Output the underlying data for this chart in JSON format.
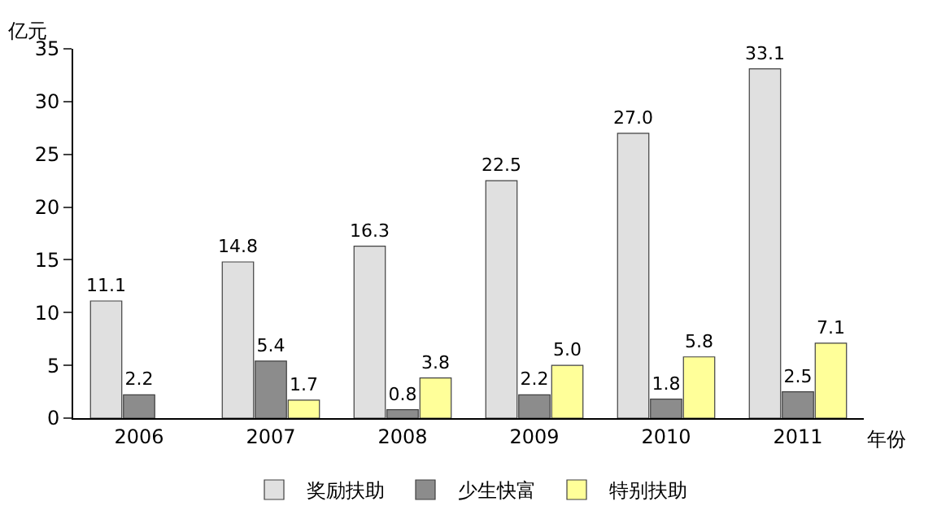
{
  "chart_data": {
    "type": "bar",
    "ylabel": "亿元",
    "xlabel": "年份",
    "categories": [
      "2006",
      "2007",
      "2008",
      "2009",
      "2010",
      "2011"
    ],
    "series": [
      {
        "name": "奖励扶助",
        "color": "#e0e0e0",
        "values": [
          11.1,
          14.8,
          16.3,
          22.5,
          27.0,
          33.1
        ],
        "value_labels": [
          "11.1",
          "14.8",
          "16.3",
          "22.5",
          "27.0",
          "33.1"
        ]
      },
      {
        "name": "少生快富",
        "color": "#8c8c8c",
        "values": [
          2.2,
          5.4,
          0.8,
          2.2,
          1.8,
          2.5
        ],
        "value_labels": [
          "2.2",
          "5.4",
          "0.8",
          "2.2",
          "1.8",
          "2.5"
        ]
      },
      {
        "name": "特别扶助",
        "color": "#ffff99",
        "values": [
          null,
          1.7,
          3.8,
          5.0,
          5.8,
          7.1
        ],
        "value_labels": [
          null,
          "1.7",
          "3.8",
          "5.0",
          "5.8",
          "7.1"
        ]
      }
    ],
    "ylim": [
      0,
      35
    ],
    "yticks": [
      0,
      5,
      10,
      15,
      20,
      25,
      30,
      35
    ],
    "legend": "bottom"
  }
}
